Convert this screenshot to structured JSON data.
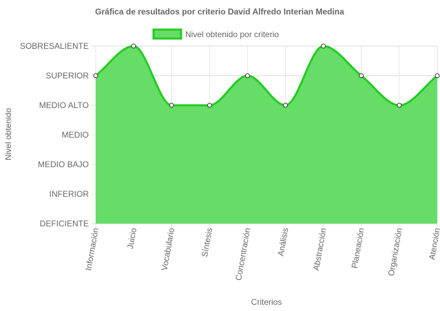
{
  "chart_data": {
    "type": "area",
    "title": "Gráfica de resultados por criterio David Alfredo Interian Medina",
    "xlabel": "Criterios",
    "ylabel": "Nivel obtenido",
    "y_levels": [
      "DEFICIENTE",
      "INFERIOR",
      "MEDIO BAJO",
      "MEDIO",
      "MEDIO ALTO",
      "SUPERIOR",
      "SOBRESALIENTE"
    ],
    "categories": [
      "Información",
      "Juicio",
      "Vocabulario",
      "Síntesis",
      "Concentración",
      "Análisis",
      "Abstracción",
      "Planeación",
      "Organización",
      "Atención"
    ],
    "series": [
      {
        "name": "Nivel obtenido por criterio",
        "values": [
          "SUPERIOR",
          "SOBRESALIENTE",
          "MEDIO ALTO",
          "MEDIO ALTO",
          "SUPERIOR",
          "MEDIO ALTO",
          "SOBRESALIENTE",
          "SUPERIOR",
          "MEDIO ALTO",
          "SUPERIOR"
        ],
        "fill_color": "#66dd66",
        "line_color": "#22cc22"
      }
    ],
    "legend_position": "top",
    "grid": true
  }
}
